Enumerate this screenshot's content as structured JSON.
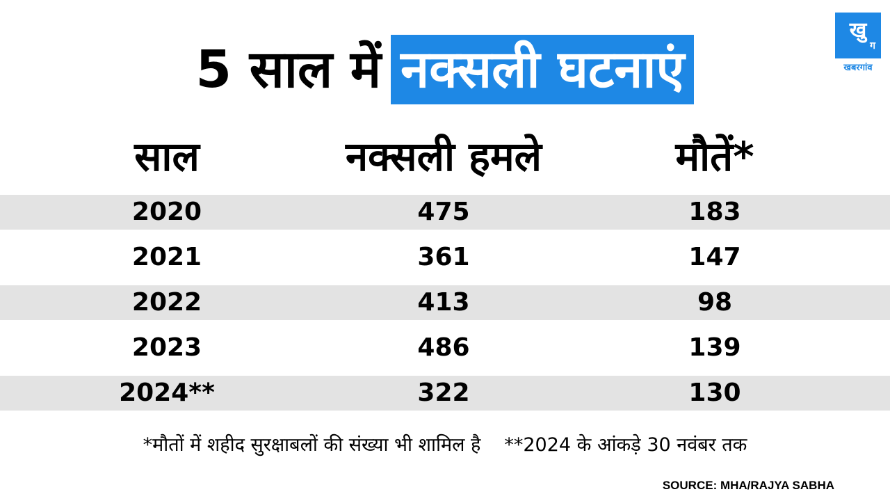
{
  "title": {
    "plain": "5 साल में",
    "highlight": "नक्सली घटनाएं",
    "highlight_color": "#1e88e5"
  },
  "logo": {
    "top": "खु",
    "bottom": "ग",
    "caption": "खबरगांव",
    "color": "#1e88e5"
  },
  "chart_data": {
    "type": "table",
    "columns": [
      "साल",
      "नक्सली हमले",
      "मौतें*"
    ],
    "rows": [
      [
        "2020",
        "475",
        "183"
      ],
      [
        "2021",
        "361",
        "147"
      ],
      [
        "2022",
        "413",
        "98"
      ],
      [
        "2023",
        "486",
        "139"
      ],
      [
        "2024**",
        "322",
        "130"
      ]
    ],
    "shaded_rows": [
      true,
      false,
      true,
      false,
      true
    ],
    "row_shade_color": "#e3e3e3"
  },
  "footnotes": [
    "*मौतों में शहीद सुरक्षाबलों की संख्या भी शामिल है",
    "**2024 के आंकड़े 30 नवंबर तक"
  ],
  "source": "SOURCE: MHA/RAJYA SABHA"
}
